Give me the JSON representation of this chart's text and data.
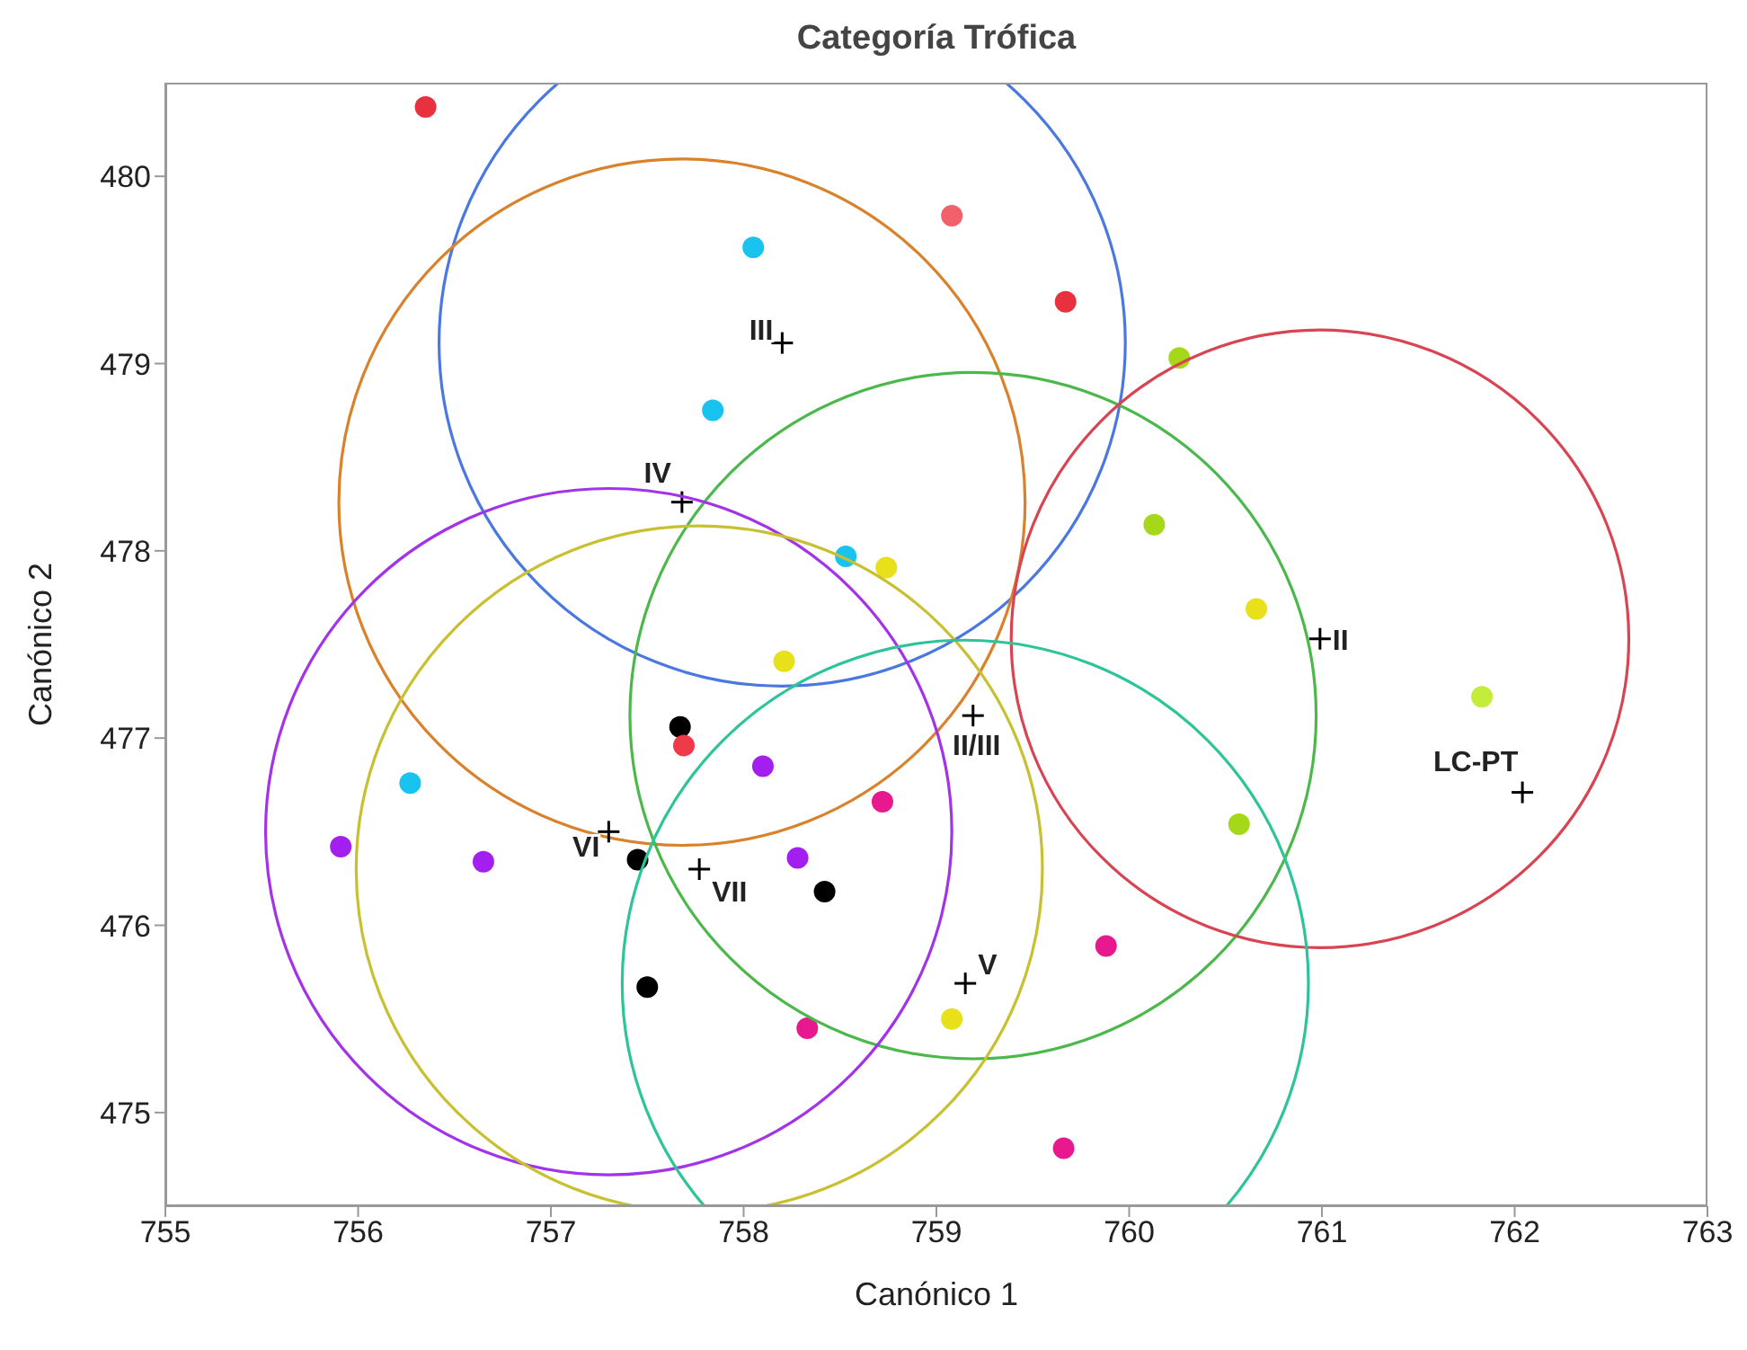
{
  "chart_data": {
    "type": "scatter",
    "title": "Categoría Trófica",
    "xlabel": "Canónico 1",
    "ylabel": "Canónico 2",
    "xlim": [
      755,
      763
    ],
    "ylim": [
      474.5,
      480.5
    ],
    "xticks": [
      755,
      756,
      757,
      758,
      759,
      760,
      761,
      762,
      763
    ],
    "yticks": [
      475,
      476,
      477,
      478,
      479,
      480
    ],
    "grid": false,
    "legend": false,
    "series": [
      {
        "marker": "circle",
        "x": [
          756.35,
          758.05,
          759.08,
          759.67,
          760.26,
          757.84,
          760.13,
          758.53,
          758.74,
          760.66,
          758.21,
          761.83,
          757.67,
          757.69,
          758.1,
          756.27,
          758.72,
          760.57,
          755.91,
          756.65,
          757.45,
          758.28,
          758.42,
          759.88,
          757.5,
          759.08,
          758.33,
          759.66
        ],
        "values": [
          480.37,
          479.62,
          479.79,
          479.33,
          479.03,
          478.75,
          478.14,
          477.97,
          477.91,
          477.69,
          477.41,
          477.22,
          477.06,
          476.96,
          476.85,
          476.76,
          476.66,
          476.54,
          476.42,
          476.34,
          476.35,
          476.36,
          476.18,
          475.89,
          475.67,
          475.5,
          475.45,
          474.81
        ],
        "colors": [
          "#e8313f",
          "#19c3ef",
          "#f2606b",
          "#e8313f",
          "#a6d81a",
          "#19c3ef",
          "#a6d81a",
          "#19c3ef",
          "#e8e01a",
          "#e8e01a",
          "#e8e01a",
          "#c4ec3a",
          "#000000",
          "#f03a4a",
          "#a31ff0",
          "#19c3ef",
          "#e8188f",
          "#a6d81a",
          "#a31ff0",
          "#a31ff0",
          "#000000",
          "#a31ff0",
          "#000000",
          "#e8188f",
          "#000000",
          "#e8e01a",
          "#e8188f",
          "#e8188f"
        ]
      },
      {
        "type": "bubble",
        "color": "#000000",
        "x": [
          758.2,
          757.68,
          759.19,
          760.99,
          757.3,
          757.77,
          759.15
        ],
        "values": [
          479.11,
          478.26,
          477.12,
          477.53,
          476.5,
          476.3,
          475.69
        ],
        "sizes": [
          1,
          1,
          1,
          0.81,
          1,
          1,
          1
        ],
        "colors": [
          "#4a78e0",
          "#d9822b",
          "#4cb84c",
          "#d94452",
          "#a333e8",
          "#c8c030",
          "#2ec49a"
        ],
        "value_labels": [
          "III",
          "IV",
          "II/III",
          "II",
          "VI",
          "VII",
          "V"
        ]
      },
      {
        "marker": "cross",
        "color": "#000000",
        "x": [
          762.04
        ],
        "values": [
          476.71
        ],
        "value_labels": [
          "LC-PT"
        ]
      }
    ]
  }
}
